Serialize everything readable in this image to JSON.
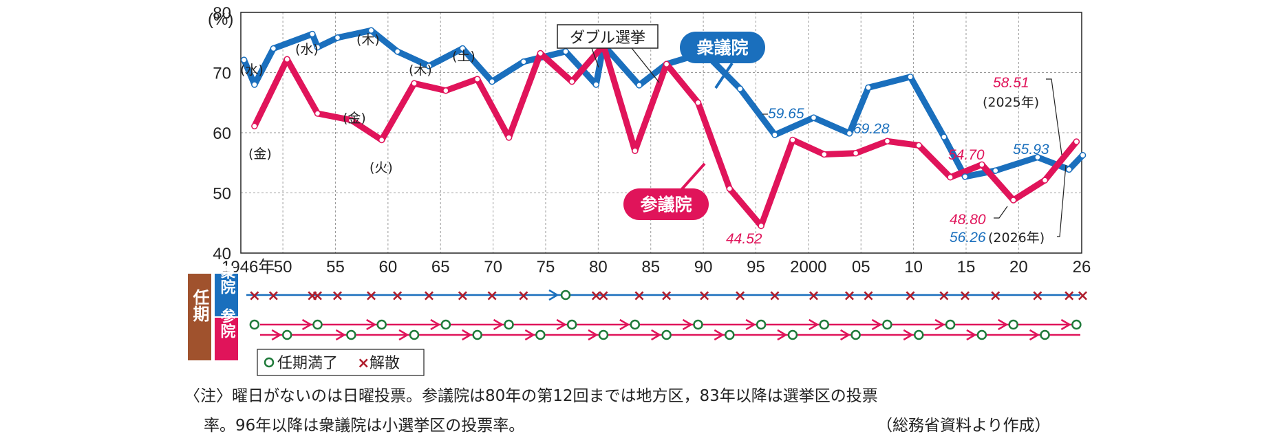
{
  "chart_data": {
    "type": "line",
    "title": "",
    "ylabel": "(%)",
    "ylim": [
      40,
      80
    ],
    "yticks": [
      40,
      50,
      60,
      70,
      80
    ],
    "xlim": [
      1946,
      2026
    ],
    "xticks": [
      {
        "v": 1946,
        "label": "1946年"
      },
      {
        "v": 1950,
        "label": "50"
      },
      {
        "v": 1955,
        "label": "55"
      },
      {
        "v": 1960,
        "label": "60"
      },
      {
        "v": 1965,
        "label": "65"
      },
      {
        "v": 1970,
        "label": "70"
      },
      {
        "v": 1975,
        "label": "75"
      },
      {
        "v": 1980,
        "label": "80"
      },
      {
        "v": 1985,
        "label": "85"
      },
      {
        "v": 1990,
        "label": "90"
      },
      {
        "v": 1995,
        "label": "95"
      },
      {
        "v": 2000,
        "label": "2000"
      },
      {
        "v": 2005,
        "label": "05"
      },
      {
        "v": 2010,
        "label": "10"
      },
      {
        "v": 2015,
        "label": "15"
      },
      {
        "v": 2020,
        "label": "20"
      },
      {
        "v": 2026,
        "label": "26"
      }
    ],
    "series": [
      {
        "name": "衆議院",
        "color": "#1a6fbd",
        "x": [
          1946.3,
          1947.3,
          1949.1,
          1952.8,
          1953.3,
          1955.2,
          1958.4,
          1960.9,
          1963.9,
          1967.1,
          1969.9,
          1972.9,
          1976.9,
          1979.8,
          1980.5,
          1983.9,
          1986.5,
          1990.1,
          1993.5,
          1996.8,
          2000.5,
          2003.9,
          2005.7,
          2009.7,
          2012.9,
          2014.9,
          2017.8,
          2021.8,
          2024.8,
          2026.1
        ],
        "y": [
          72.1,
          68.0,
          74.0,
          76.4,
          74.2,
          75.8,
          77.0,
          73.5,
          71.1,
          74.0,
          68.5,
          71.8,
          73.5,
          68.0,
          74.6,
          67.9,
          71.4,
          73.3,
          67.3,
          59.65,
          62.5,
          59.9,
          67.5,
          69.28,
          59.3,
          52.7,
          53.7,
          55.93,
          53.9,
          56.26
        ]
      },
      {
        "name": "参議院",
        "color": "#e0145a",
        "x": [
          1947.3,
          1950.4,
          1953.3,
          1956.5,
          1959.4,
          1962.5,
          1965.5,
          1968.5,
          1971.5,
          1974.5,
          1977.5,
          1980.5,
          1983.5,
          1986.5,
          1989.5,
          1992.5,
          1995.5,
          1998.5,
          2001.5,
          2004.5,
          2007.5,
          2010.5,
          2013.5,
          2016.5,
          2019.5,
          2022.5,
          2025.5
        ],
        "y": [
          61.1,
          72.2,
          63.2,
          62.1,
          58.8,
          68.2,
          67.0,
          68.9,
          59.2,
          73.2,
          68.5,
          74.5,
          57.0,
          71.4,
          65.0,
          50.7,
          44.52,
          58.8,
          56.4,
          56.6,
          58.6,
          57.9,
          52.6,
          54.7,
          48.8,
          52.1,
          58.51
        ]
      }
    ],
    "value_labels": {
      "shu_1996": "59.65",
      "shu_2009": "69.28",
      "shu_2021": "55.93",
      "shu_2026": "56.26",
      "san_1995": "44.52",
      "san_2016": "54.70",
      "san_2019": "48.80",
      "san_2025": "58.51",
      "year_2025": "(2025年)",
      "year_2026": "(2026年)"
    },
    "day_labels": [
      "(水)",
      "(水)",
      "(木)",
      "(木)",
      "(土)",
      "(金)",
      "(金)",
      "(火)"
    ],
    "annotations": {
      "shu_label": "衆議院",
      "san_label": "参議院",
      "double_label": "ダブル選挙"
    }
  },
  "term_chart": {
    "side_label": "任期",
    "shu_label": "衆院",
    "san_label": "参院",
    "legend_expire": "任期満了",
    "legend_dissolve": "解散",
    "shu_dissolutions": [
      1947.3,
      1949.1,
      1952.8,
      1953.3,
      1955.2,
      1958.4,
      1960.9,
      1963.9,
      1967.1,
      1969.9,
      1972.9,
      1979.8,
      1980.5,
      1983.9,
      1986.5,
      1990.1,
      1993.5,
      1996.8,
      2000.5,
      2003.9,
      2005.7,
      2009.7,
      2012.9,
      2014.9,
      2017.8,
      2021.8,
      2024.8,
      2026.1
    ],
    "shu_expiry": [
      1976.9
    ],
    "san_elections": [
      1947.3,
      1950.4,
      1953.3,
      1956.5,
      1959.4,
      1962.5,
      1965.5,
      1968.5,
      1971.5,
      1974.5,
      1977.5,
      1980.5,
      1983.5,
      1986.5,
      1989.5,
      1992.5,
      1995.5,
      1998.5,
      2001.5,
      2004.5,
      2007.5,
      2010.5,
      2013.5,
      2016.5,
      2019.5,
      2022.5,
      2025.5
    ]
  },
  "notes": {
    "line1": "〈注〉曜日がないのは日曜投票。参議院は80年の第12回までは地方区，83年以降は選挙区の投票",
    "line2": "率。96年以降は衆議院は小選挙区の投票率。",
    "source": "（総務省資料より作成）"
  }
}
